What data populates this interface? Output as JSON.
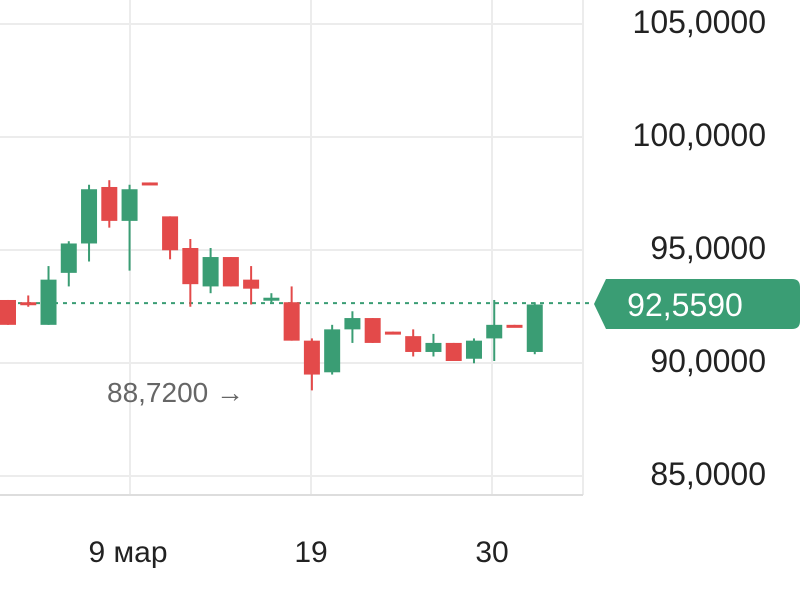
{
  "chart_data": {
    "type": "candlestick",
    "x_ticks": [
      "9 мар",
      "19",
      "30"
    ],
    "y_ticks": [
      "105,0000",
      "100,0000",
      "95,0000",
      "90,0000",
      "85,0000"
    ],
    "ylim": [
      84.4,
      106.1
    ],
    "grid": true,
    "current_price": {
      "value": 92.559,
      "label": "92,5590",
      "color": "#3a9d74"
    },
    "low_marker": {
      "value": 88.72,
      "label": "88,7200 →"
    },
    "colors": {
      "up": "#3a9d74",
      "down": "#e34a4a",
      "grid": "#ececec",
      "axis_text": "#222222",
      "annotation_text": "#666666"
    },
    "candles": [
      {
        "o": 92.7,
        "h": 92.7,
        "l": 91.6,
        "c": 91.6
      },
      {
        "o": 92.6,
        "h": 92.9,
        "l": 92.4,
        "c": 92.5
      },
      {
        "o": 91.6,
        "h": 94.2,
        "l": 91.6,
        "c": 93.6
      },
      {
        "o": 93.9,
        "h": 95.3,
        "l": 93.3,
        "c": 95.2
      },
      {
        "o": 95.2,
        "h": 97.8,
        "l": 94.4,
        "c": 97.6
      },
      {
        "o": 97.7,
        "h": 98.0,
        "l": 95.9,
        "c": 96.2
      },
      {
        "o": 96.2,
        "h": 97.8,
        "l": 94.0,
        "c": 97.6
      },
      {
        "o": 97.9,
        "h": 97.9,
        "l": 97.8,
        "c": 97.8
      },
      {
        "o": 96.4,
        "h": 96.4,
        "l": 94.5,
        "c": 94.9
      },
      {
        "o": 95.0,
        "h": 95.4,
        "l": 92.4,
        "c": 93.4
      },
      {
        "o": 93.3,
        "h": 95.0,
        "l": 93.0,
        "c": 94.6
      },
      {
        "o": 94.6,
        "h": 94.6,
        "l": 93.3,
        "c": 93.3
      },
      {
        "o": 93.6,
        "h": 94.2,
        "l": 92.5,
        "c": 93.2
      },
      {
        "o": 92.8,
        "h": 93.0,
        "l": 92.6,
        "c": 92.8
      },
      {
        "o": 92.6,
        "h": 93.3,
        "l": 90.9,
        "c": 90.9
      },
      {
        "o": 90.9,
        "h": 91.0,
        "l": 88.7,
        "c": 89.4
      },
      {
        "o": 89.5,
        "h": 91.6,
        "l": 89.4,
        "c": 91.4
      },
      {
        "o": 91.4,
        "h": 92.2,
        "l": 90.8,
        "c": 91.9
      },
      {
        "o": 91.9,
        "h": 91.9,
        "l": 90.8,
        "c": 90.8
      },
      {
        "o": 91.3,
        "h": 91.3,
        "l": 91.2,
        "c": 91.2
      },
      {
        "o": 91.1,
        "h": 91.4,
        "l": 90.2,
        "c": 90.4
      },
      {
        "o": 90.4,
        "h": 91.2,
        "l": 90.2,
        "c": 90.8
      },
      {
        "o": 90.8,
        "h": 90.8,
        "l": 90.0,
        "c": 90.0
      },
      {
        "o": 90.1,
        "h": 91.0,
        "l": 89.9,
        "c": 90.9
      },
      {
        "o": 91.0,
        "h": 92.7,
        "l": 90.0,
        "c": 91.6
      },
      {
        "o": 91.6,
        "h": 91.6,
        "l": 91.5,
        "c": 91.5
      },
      {
        "o": 90.4,
        "h": 92.6,
        "l": 90.3,
        "c": 92.5
      }
    ]
  }
}
